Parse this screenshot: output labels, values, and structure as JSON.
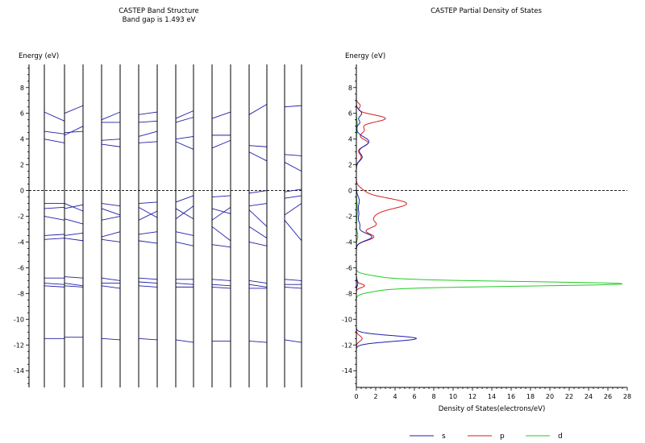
{
  "chart_data": [
    {
      "type": "line",
      "title": "CASTEP Band Structure",
      "subtitle": "Band gap is 1.493 eV",
      "ylabel": "Energy (eV)",
      "xlabel": "",
      "ylim": [
        -15.3,
        9.8
      ],
      "yticks": [
        8,
        6,
        4,
        2,
        0,
        -2,
        -4,
        -6,
        -8,
        -10,
        -12,
        -14
      ],
      "fermi_level": 0,
      "grid": false,
      "panels": [
        {
          "bands": [
            [
              6.1,
              5.4
            ],
            [
              4.6,
              4.4
            ],
            [
              4.0,
              3.7
            ],
            [
              -1.0,
              -1.0
            ],
            [
              -1.4,
              -1.3
            ],
            [
              -2.0,
              -2.3
            ],
            [
              -3.5,
              -3.4
            ],
            [
              -3.8,
              -3.7
            ],
            [
              -6.8,
              -6.8
            ],
            [
              -7.2,
              -7.3
            ],
            [
              -7.4,
              -7.5
            ],
            [
              -11.5,
              -11.5
            ]
          ]
        },
        {
          "bands": [
            [
              6.0,
              6.6
            ],
            [
              4.3,
              5.0
            ],
            [
              4.5,
              4.6
            ],
            [
              -1.0,
              -1.6
            ],
            [
              -1.4,
              -1.1
            ],
            [
              -2.2,
              -2.6
            ],
            [
              -3.5,
              -3.3
            ],
            [
              -3.7,
              -3.9
            ],
            [
              -6.7,
              -6.8
            ],
            [
              -7.2,
              -7.4
            ],
            [
              -7.4,
              -7.5
            ],
            [
              -11.4,
              -11.4
            ]
          ]
        },
        {
          "bands": [
            [
              5.5,
              6.1
            ],
            [
              5.3,
              5.3
            ],
            [
              3.9,
              4.0
            ],
            [
              3.6,
              3.4
            ],
            [
              -1.0,
              -1.2
            ],
            [
              -1.4,
              -1.9
            ],
            [
              -2.3,
              -2.0
            ],
            [
              -3.6,
              -3.2
            ],
            [
              -3.8,
              -4.0
            ],
            [
              -6.8,
              -7.0
            ],
            [
              -7.2,
              -7.2
            ],
            [
              -7.4,
              -7.6
            ],
            [
              -11.5,
              -11.6
            ]
          ]
        },
        {
          "bands": [
            [
              5.9,
              6.1
            ],
            [
              5.3,
              5.4
            ],
            [
              4.2,
              4.6
            ],
            [
              3.7,
              3.8
            ],
            [
              -1.0,
              -0.9
            ],
            [
              -1.3,
              -2.1
            ],
            [
              -2.3,
              -1.6
            ],
            [
              -3.4,
              -3.2
            ],
            [
              -3.9,
              -4.1
            ],
            [
              -6.8,
              -6.9
            ],
            [
              -7.1,
              -7.2
            ],
            [
              -7.4,
              -7.5
            ],
            [
              -11.5,
              -11.6
            ]
          ]
        },
        {
          "bands": [
            [
              5.6,
              6.2
            ],
            [
              5.3,
              5.7
            ],
            [
              4.0,
              4.2
            ],
            [
              3.8,
              3.2
            ],
            [
              -0.9,
              -0.4
            ],
            [
              -1.4,
              -2.2
            ],
            [
              -2.2,
              -1.2
            ],
            [
              -3.2,
              -3.5
            ],
            [
              -4.0,
              -4.3
            ],
            [
              -6.9,
              -6.9
            ],
            [
              -7.2,
              -7.3
            ],
            [
              -7.5,
              -7.5
            ],
            [
              -11.6,
              -11.8
            ]
          ]
        },
        {
          "bands": [
            [
              5.6,
              6.1
            ],
            [
              4.3,
              4.3
            ],
            [
              3.3,
              3.9
            ],
            [
              -0.5,
              -0.4
            ],
            [
              -1.4,
              -1.8
            ],
            [
              -2.3,
              -1.3
            ],
            [
              -2.8,
              -3.9
            ],
            [
              -4.2,
              -4.4
            ],
            [
              -6.9,
              -7.0
            ],
            [
              -7.3,
              -7.4
            ],
            [
              -7.5,
              -7.6
            ],
            [
              -11.7,
              -11.7
            ]
          ]
        },
        {
          "bands": [
            [
              5.9,
              6.7
            ],
            [
              3.5,
              3.4
            ],
            [
              3.0,
              2.3
            ],
            [
              -0.2,
              0.0
            ],
            [
              -1.2,
              -1.0
            ],
            [
              -1.5,
              -2.8
            ],
            [
              -2.8,
              -3.7
            ],
            [
              -4.0,
              -4.3
            ],
            [
              -7.0,
              -7.2
            ],
            [
              -7.3,
              -7.5
            ],
            [
              -7.6,
              -7.6
            ],
            [
              -11.7,
              -11.8
            ]
          ]
        },
        {
          "bands": [
            [
              6.5,
              6.6
            ],
            [
              2.8,
              2.7
            ],
            [
              2.2,
              1.5
            ],
            [
              -0.1,
              0.1
            ],
            [
              -0.6,
              -0.4
            ],
            [
              -1.9,
              -1.0
            ],
            [
              -2.3,
              -3.9
            ],
            [
              -6.9,
              -7.0
            ],
            [
              -7.3,
              -7.3
            ],
            [
              -7.5,
              -7.6
            ],
            [
              -11.6,
              -11.8
            ]
          ]
        }
      ]
    },
    {
      "type": "line",
      "title": "CASTEP Partial  Density of States",
      "ylabel": "Energy (eV)",
      "xlabel": "Density of States(electrons/eV)",
      "xlim": [
        0,
        28
      ],
      "xticks": [
        0,
        2,
        4,
        6,
        8,
        10,
        12,
        14,
        16,
        18,
        20,
        22,
        24,
        26,
        28
      ],
      "ylim": [
        -15.3,
        9.8
      ],
      "yticks": [
        8,
        6,
        4,
        2,
        0,
        -2,
        -4,
        -6,
        -8,
        -10,
        -12,
        -14
      ],
      "fermi_level": 0,
      "grid": false,
      "legend_position": "bottom",
      "series": [
        {
          "name": "s",
          "color": "#1f1fa8",
          "peaks": [
            [
              6.0,
              0.55,
              0.35
            ],
            [
              5.3,
              0.35,
              0.25
            ],
            [
              3.8,
              1.3,
              0.5
            ],
            [
              2.6,
              0.6,
              0.4
            ],
            [
              -0.8,
              0.3,
              0.5
            ],
            [
              -1.8,
              0.25,
              0.5
            ],
            [
              -3.6,
              1.6,
              0.4
            ],
            [
              -2.7,
              0.35,
              0.4
            ],
            [
              -7.2,
              0.15,
              0.3
            ],
            [
              -11.5,
              6.2,
              0.32
            ]
          ]
        },
        {
          "name": "p",
          "color": "#d42020",
          "peaks": [
            [
              6.6,
              0.4,
              0.25
            ],
            [
              5.6,
              3.0,
              0.4
            ],
            [
              4.7,
              0.8,
              0.4
            ],
            [
              3.7,
              1.2,
              0.4
            ],
            [
              2.6,
              0.5,
              0.4
            ],
            [
              -1.0,
              5.1,
              0.6
            ],
            [
              0.0,
              0.5,
              0.4
            ],
            [
              -2.0,
              1.5,
              0.6
            ],
            [
              -2.7,
              1.6,
              0.4
            ],
            [
              -3.6,
              1.8,
              0.4
            ],
            [
              -7.4,
              0.85,
              0.2
            ],
            [
              -11.5,
              0.6,
              0.3
            ]
          ]
        },
        {
          "name": "d",
          "color": "#22cc22",
          "peaks": [
            [
              -7.25,
              27.0,
              0.25
            ],
            [
              -6.8,
              2.5,
              0.3
            ],
            [
              -7.7,
              2.2,
              0.3
            ],
            [
              5.0,
              0.1,
              0.6
            ],
            [
              -1.5,
              0.1,
              0.8
            ],
            [
              -3.5,
              0.15,
              0.4
            ]
          ]
        }
      ]
    }
  ]
}
